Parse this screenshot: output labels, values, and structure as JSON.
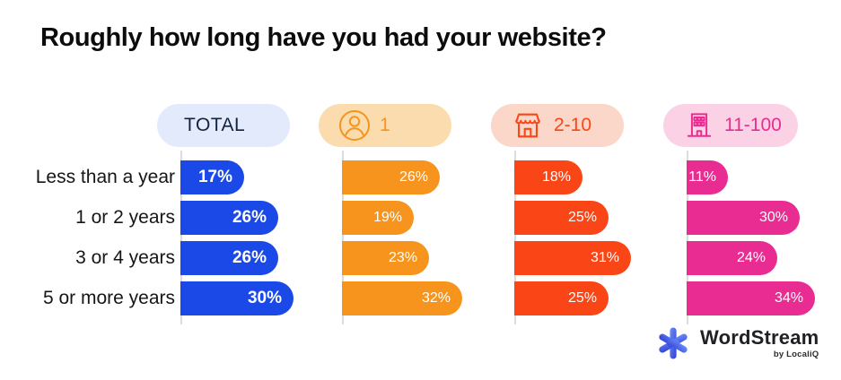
{
  "header": {
    "title": "Roughly how long have you had your website?"
  },
  "chart_data": {
    "type": "bar",
    "orientation": "horizontal",
    "title": "Roughly how long have you had your website?",
    "value_suffix": "%",
    "value_labels": "inside-end",
    "legend_position": "top",
    "xlim": [
      0,
      34
    ],
    "grid": false,
    "categories": [
      "Less than a year",
      "1 or 2 years",
      "3 or 4 years",
      "5 or more years"
    ],
    "series": [
      {
        "name": "TOTAL",
        "icon": null,
        "bar_color": "#1A49E8",
        "badge_bg": "#E2EAFB",
        "badge_fg": "#13233F",
        "values": [
          17,
          26,
          26,
          30
        ]
      },
      {
        "name": "1",
        "icon": "person-icon",
        "bar_color": "#F7941D",
        "badge_bg": "#FBDCAE",
        "badge_fg": "#F7941D",
        "values": [
          26,
          19,
          23,
          32
        ]
      },
      {
        "name": "2-10",
        "icon": "storefront-icon",
        "bar_color": "#FA4616",
        "badge_bg": "#FAD7C8",
        "badge_fg": "#FA4616",
        "values": [
          18,
          25,
          31,
          25
        ]
      },
      {
        "name": "11-100",
        "icon": "building-icon",
        "bar_color": "#E92C91",
        "badge_bg": "#FBD2E5",
        "badge_fg": "#E92C91",
        "values": [
          11,
          30,
          24,
          34
        ]
      }
    ]
  },
  "footer": {
    "brand": "WordStream",
    "sub_brand": "by LocaliQ",
    "logo_icon": "asterisk-icon",
    "logo_color": "#4261E3"
  }
}
